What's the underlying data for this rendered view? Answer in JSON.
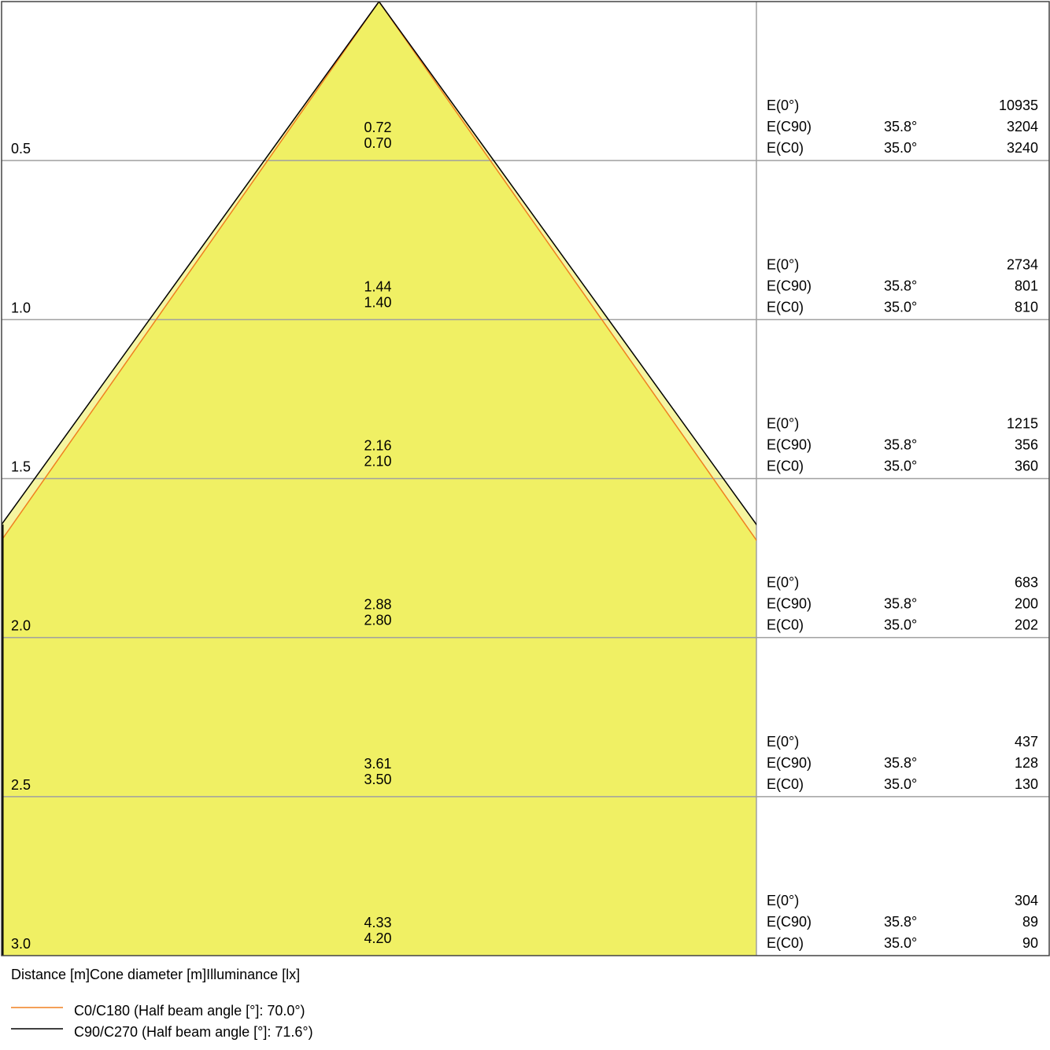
{
  "chart_data": {
    "type": "cone-diagram",
    "header": "Distance [m]Cone diameter [m]Illuminance [lx]",
    "ylim": [
      0,
      3.0
    ],
    "colors": {
      "c0": "#f08020",
      "c90": "#000000",
      "fill": "#f0f064",
      "fill_light": "#f5f5a0",
      "grid": "#a0a0a0"
    },
    "legend": [
      {
        "name": "C0/C180 (Half beam angle [°]: 70.0°)",
        "color": "#f08020",
        "half_angle": 35.0
      },
      {
        "name": "C90/C270 (Half beam angle [°]: 71.6°)",
        "color": "#000000",
        "half_angle": 35.8
      }
    ],
    "rows": [
      {
        "distance": "0.5",
        "d": 0.5,
        "diam_c90": "0.72",
        "diam_c0": "0.70",
        "e0": "10935",
        "ec90": "3204",
        "ec0": "3240"
      },
      {
        "distance": "1.0",
        "d": 1.0,
        "diam_c90": "1.44",
        "diam_c0": "1.40",
        "e0": "2734",
        "ec90": "801",
        "ec0": "810"
      },
      {
        "distance": "1.5",
        "d": 1.5,
        "diam_c90": "2.16",
        "diam_c0": "2.10",
        "e0": "1215",
        "ec90": "356",
        "ec0": "360"
      },
      {
        "distance": "2.0",
        "d": 2.0,
        "diam_c90": "2.88",
        "diam_c0": "2.80",
        "e0": "683",
        "ec90": "200",
        "ec0": "202"
      },
      {
        "distance": "2.5",
        "d": 2.5,
        "diam_c90": "3.61",
        "diam_c0": "3.50",
        "e0": "437",
        "ec90": "128",
        "ec0": "130"
      },
      {
        "distance": "3.0",
        "d": 3.0,
        "diam_c90": "4.33",
        "diam_c0": "4.20",
        "e0": "304",
        "ec90": "89",
        "ec0": "90"
      }
    ],
    "labels": {
      "e0": "E(0°)",
      "ec90": "E(C90)",
      "ec0": "E(C0)",
      "angle_c90": "35.8°",
      "angle_c0": "35.0°"
    }
  }
}
